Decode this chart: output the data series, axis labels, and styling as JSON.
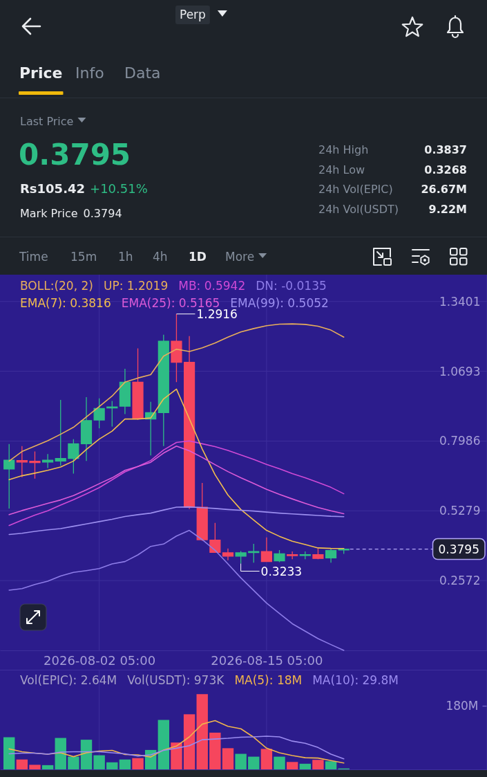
{
  "chart_data": [
    {
      "type": "other",
      "annotations": [
        "Perp",
        "Price",
        "Info",
        "Data",
        "Last Price",
        "0.3795",
        "Rs105.42",
        "+10.51%",
        "Mark Price",
        "0.3794",
        "24h High",
        "0.3837",
        "24h Low",
        "0.3268",
        "24h Vol(EPIC)",
        "26.67M",
        "24h Vol(USDT)",
        "9.22M",
        "Time",
        "15m",
        "1h",
        "4h",
        "1D",
        "More"
      ]
    },
    {
      "type": "candlestick",
      "x": [
        "2026-07-26T05:00",
        "2026-07-27T05:00",
        "2026-07-28T05:00",
        "2026-07-29T05:00",
        "2026-07-30T05:00",
        "2026-07-31T05:00",
        "2026-08-01T05:00",
        "2026-08-02T05:00",
        "2026-08-03T05:00",
        "2026-08-04T05:00",
        "2026-08-05T05:00",
        "2026-08-06T05:00",
        "2026-08-07T05:00",
        "2026-08-08T05:00",
        "2026-08-09T05:00",
        "2026-08-10T05:00",
        "2026-08-11T05:00",
        "2026-08-12T05:00",
        "2026-08-13T05:00",
        "2026-08-14T05:00",
        "2026-08-15T05:00",
        "2026-08-16T05:00",
        "2026-08-17T05:00",
        "2026-08-18T05:00",
        "2026-08-19T05:00",
        "2026-08-20T05:00",
        "2026-08-21T05:00"
      ],
      "ohlc": [
        [
          0.69,
          0.787,
          0.537,
          0.724
        ],
        [
          0.723,
          0.779,
          0.658,
          0.717
        ],
        [
          0.72,
          0.758,
          0.653,
          0.715
        ],
        [
          0.717,
          0.748,
          0.694,
          0.724
        ],
        [
          0.721,
          0.958,
          0.703,
          0.731
        ],
        [
          0.731,
          0.806,
          0.672,
          0.788
        ],
        [
          0.788,
          0.969,
          0.721,
          0.878
        ],
        [
          0.88,
          0.964,
          0.848,
          0.925
        ],
        [
          0.927,
          0.954,
          0.855,
          0.931
        ],
        [
          0.934,
          1.079,
          0.903,
          1.027
        ],
        [
          1.027,
          1.158,
          0.881,
          0.886
        ],
        [
          0.884,
          0.951,
          0.743,
          0.909
        ],
        [
          0.909,
          1.211,
          0.779,
          1.186
        ],
        [
          1.186,
          1.2916,
          1.027,
          1.104
        ],
        [
          1.104,
          1.206,
          0.535,
          0.542
        ],
        [
          0.542,
          0.636,
          0.411,
          0.416
        ],
        [
          0.414,
          0.481,
          0.365,
          0.367
        ],
        [
          0.365,
          0.382,
          0.336,
          0.352
        ],
        [
          0.352,
          0.372,
          0.3233,
          0.365
        ],
        [
          0.366,
          0.4,
          0.327,
          0.37
        ],
        [
          0.37,
          0.425,
          0.33,
          0.331
        ],
        [
          0.334,
          0.376,
          0.329,
          0.361
        ],
        [
          0.358,
          0.37,
          0.34,
          0.354
        ],
        [
          0.356,
          0.37,
          0.34,
          0.358
        ],
        [
          0.358,
          0.382,
          0.34,
          0.343
        ],
        [
          0.345,
          0.382,
          0.327,
          0.374
        ],
        [
          0.378,
          0.383,
          0.361,
          0.3795
        ]
      ],
      "colors": [
        "#2ebd85",
        "#f6465d",
        "#f6465d",
        "#2ebd85",
        "#2ebd85",
        "#2ebd85",
        "#2ebd85",
        "#2ebd85",
        "#2ebd85",
        "#2ebd85",
        "#f6465d",
        "#2ebd85",
        "#2ebd85",
        "#f6465d",
        "#f6465d",
        "#f6465d",
        "#f6465d",
        "#f6465d",
        "#2ebd85",
        "#2ebd85",
        "#f6465d",
        "#2ebd85",
        "#f6465d",
        "#2ebd85",
        "#f6465d",
        "#2ebd85",
        "#2ebd85"
      ],
      "series": [
        {
          "name": "UP: 1.2019",
          "type": "line",
          "color": "#e8ae5a",
          "values": [
            0.721,
            0.758,
            0.779,
            0.8,
            0.825,
            0.852,
            0.892,
            0.932,
            0.973,
            1.027,
            1.043,
            1.056,
            1.128,
            1.155,
            1.146,
            1.16,
            1.179,
            1.202,
            1.222,
            1.235,
            1.246,
            1.252,
            1.253,
            1.251,
            1.244,
            1.229,
            1.2019
          ]
        },
        {
          "name": "MB: 0.5942",
          "type": "line",
          "color": "#d04ad6",
          "values": [
            0.471,
            0.492,
            0.511,
            0.528,
            0.55,
            0.571,
            0.594,
            0.618,
            0.648,
            0.679,
            0.7,
            0.723,
            0.764,
            0.793,
            0.799,
            0.788,
            0.777,
            0.762,
            0.745,
            0.727,
            0.708,
            0.691,
            0.672,
            0.656,
            0.638,
            0.619,
            0.5942
          ]
        },
        {
          "name": "DN: -0.0135",
          "type": "line",
          "color": "#8d7ce8",
          "values": [
            0.22,
            0.226,
            0.242,
            0.255,
            0.275,
            0.289,
            0.296,
            0.304,
            0.322,
            0.331,
            0.357,
            0.39,
            0.399,
            0.43,
            0.452,
            0.416,
            0.375,
            0.322,
            0.268,
            0.219,
            0.17,
            0.13,
            0.09,
            0.061,
            0.032,
            0.009,
            -0.0135
          ]
        },
        {
          "name": "EMA(7): 0.3816",
          "type": "line",
          "color": "#f2bd4e",
          "values": [
            0.649,
            0.664,
            0.674,
            0.685,
            0.698,
            0.721,
            0.766,
            0.806,
            0.837,
            0.884,
            0.884,
            0.888,
            0.962,
            1.0,
            0.885,
            0.768,
            0.668,
            0.589,
            0.533,
            0.492,
            0.452,
            0.429,
            0.41,
            0.397,
            0.384,
            0.382,
            0.3816
          ]
        },
        {
          "name": "EMA(25): 0.5165",
          "type": "line",
          "color": "#dd5bd8",
          "values": [
            0.513,
            0.529,
            0.543,
            0.557,
            0.57,
            0.587,
            0.609,
            0.633,
            0.656,
            0.685,
            0.7,
            0.716,
            0.752,
            0.779,
            0.761,
            0.735,
            0.707,
            0.68,
            0.656,
            0.634,
            0.611,
            0.592,
            0.574,
            0.557,
            0.541,
            0.528,
            0.5165
          ]
        },
        {
          "name": "EMA(99): 0.5052",
          "type": "line",
          "color": "#9c8ff0",
          "values": [
            0.436,
            0.441,
            0.448,
            0.454,
            0.459,
            0.468,
            0.477,
            0.486,
            0.495,
            0.506,
            0.513,
            0.519,
            0.531,
            0.542,
            0.543,
            0.54,
            0.537,
            0.533,
            0.53,
            0.527,
            0.523,
            0.519,
            0.516,
            0.513,
            0.51,
            0.507,
            0.5052
          ]
        }
      ],
      "xlim": [
        "2026-07-25T12:00",
        "2026-09-01T08:00"
      ],
      "ylim": [
        -0.0135,
        1.444
      ],
      "xticks": [
        {
          "value": "2026-08-02T05:00",
          "label": "2026-08-02 05:00"
        },
        {
          "value": "2026-08-15T05:00",
          "label": "2026-08-15 05:00"
        }
      ],
      "yticks": [
        1.3401,
        1.0693,
        0.7986,
        0.5279,
        0.2572
      ],
      "grid": true,
      "legend": "top left",
      "legend_title": "BOLL:(20, 2)",
      "ref_lines": [
        {
          "axis": "y",
          "value": 0.3795,
          "label": "0.3795",
          "color": "#b3a8f5",
          "line_style": "dashed"
        }
      ],
      "annotations": [
        {
          "text": "1.2916",
          "x": "2026-08-08T05:00",
          "y": 1.2916
        },
        {
          "text": "0.3233",
          "x": "2026-08-13T05:00",
          "y": 0.3233
        }
      ]
    },
    {
      "type": "bar",
      "x": [
        "2026-07-26T05:00",
        "2026-07-27T05:00",
        "2026-07-28T05:00",
        "2026-07-29T05:00",
        "2026-07-30T05:00",
        "2026-07-31T05:00",
        "2026-08-01T05:00",
        "2026-08-02T05:00",
        "2026-08-03T05:00",
        "2026-08-04T05:00",
        "2026-08-05T05:00",
        "2026-08-06T05:00",
        "2026-08-07T05:00",
        "2026-08-08T05:00",
        "2026-08-09T05:00",
        "2026-08-10T05:00",
        "2026-08-11T05:00",
        "2026-08-12T05:00",
        "2026-08-13T05:00",
        "2026-08-14T05:00",
        "2026-08-15T05:00",
        "2026-08-16T05:00",
        "2026-08-17T05:00",
        "2026-08-18T05:00",
        "2026-08-19T05:00",
        "2026-08-20T05:00",
        "2026-08-21T05:00"
      ],
      "series": [
        {
          "type": "bar",
          "colors": [
            "#2ebd85",
            "#f6465d",
            "#f6465d",
            "#2ebd85",
            "#2ebd85",
            "#2ebd85",
            "#2ebd85",
            "#2ebd85",
            "#2ebd85",
            "#2ebd85",
            "#f6465d",
            "#2ebd85",
            "#2ebd85",
            "#f6465d",
            "#f6465d",
            "#f6465d",
            "#f6465d",
            "#f6465d",
            "#2ebd85",
            "#2ebd85",
            "#f6465d",
            "#2ebd85",
            "#f6465d",
            "#2ebd85",
            "#f6465d",
            "#2ebd85",
            "#2ebd85"
          ],
          "values": [
            91,
            28,
            13,
            12,
            89,
            36,
            84,
            40,
            20,
            28,
            32,
            55,
            140,
            76,
            156,
            213,
            104,
            60,
            44,
            36,
            58,
            36,
            21,
            16,
            27,
            23,
            2.64
          ]
        },
        {
          "name": "MA(5): 18M",
          "type": "line",
          "color": "#f0b44c",
          "values": [
            58,
            50,
            46,
            43,
            47,
            36,
            47,
            52,
            54,
            42,
            41,
            35,
            55,
            66,
            92,
            128,
            138,
            122,
            115,
            91,
            60,
            47,
            39,
            33,
            32,
            25,
            18
          ]
        },
        {
          "name": "MA(10): 29.8M",
          "type": "line",
          "color": "#9b8cf0",
          "values": [
            44,
            46,
            46,
            43,
            49,
            50,
            50,
            50,
            47,
            44,
            38,
            41,
            54,
            60,
            67,
            84,
            86,
            88,
            91,
            92,
            94,
            92,
            80,
            74,
            62,
            43,
            29.8
          ]
        }
      ],
      "xlim": [
        "2026-07-25T12:00",
        "2026-09-01T08:00"
      ],
      "ylim": [
        0,
        282
      ],
      "xticks": [
        {
          "value": "2026-08-02T05:00",
          "label": null
        },
        {
          "value": "2026-08-15T05:00",
          "label": null
        }
      ],
      "yticks": [
        {
          "value": 180,
          "label": "180M"
        }
      ],
      "tick_labels": "y",
      "grid": "x",
      "legend": "top",
      "annotations": [
        "Vol(EPIC): 2.64M",
        "Vol(USDT): 973K"
      ]
    }
  ]
}
